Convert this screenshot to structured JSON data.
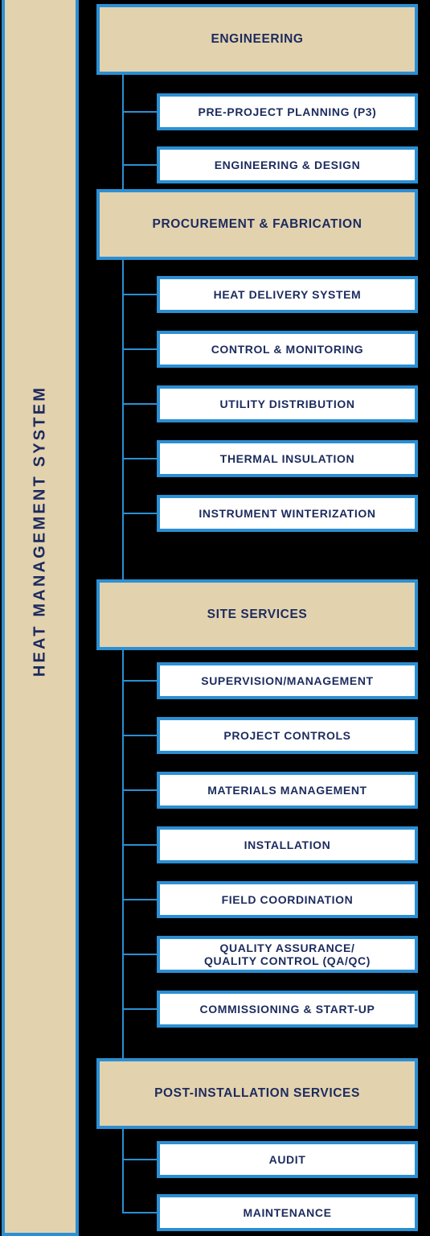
{
  "title": "HEAT MANAGEMENT SYSTEM",
  "sections": [
    {
      "title": "ENGINEERING",
      "items": [
        "PRE-PROJECT PLANNING (P3)",
        "ENGINEERING & DESIGN"
      ]
    },
    {
      "title": "PROCUREMENT & FABRICATION",
      "items": [
        "HEAT DELIVERY SYSTEM",
        "CONTROL & MONITORING",
        "UTILITY DISTRIBUTION",
        "THERMAL INSULATION",
        "INSTRUMENT WINTERIZATION"
      ]
    },
    {
      "title": "SITE SERVICES",
      "items": [
        "SUPERVISION/MANAGEMENT",
        "PROJECT CONTROLS",
        "MATERIALS MANAGEMENT",
        "INSTALLATION",
        "FIELD COORDINATION",
        "QUALITY ASSURANCE/\nQUALITY CONTROL (QA/QC)",
        "COMMISSIONING & START-UP"
      ]
    },
    {
      "title": "POST-INSTALLATION SERVICES",
      "items": [
        "AUDIT",
        "MAINTENANCE"
      ]
    }
  ]
}
